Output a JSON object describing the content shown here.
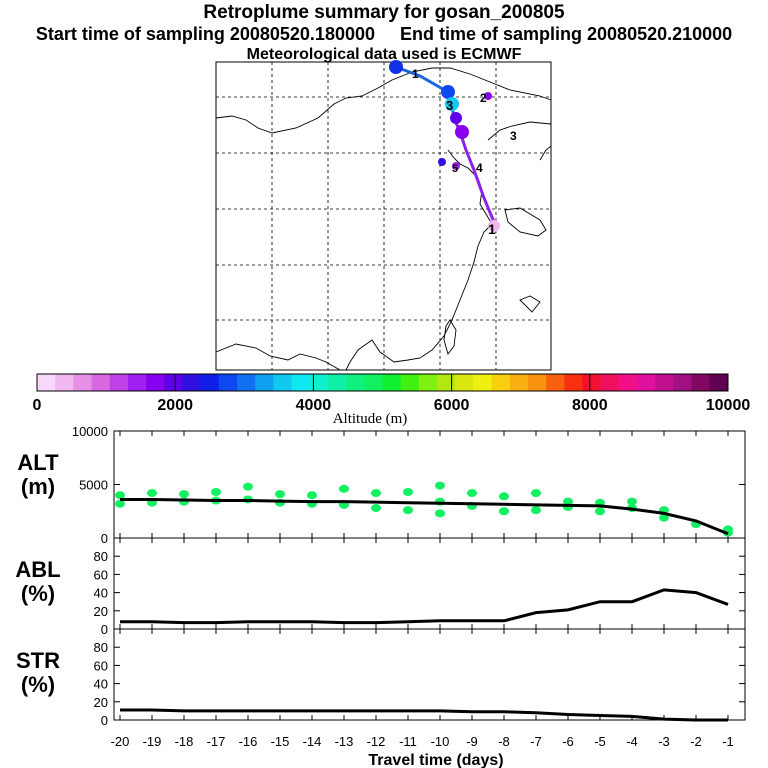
{
  "header": {
    "title": "Retroplume summary for gosan_200805",
    "start_label": "Start time of sampling 20080520.180000",
    "end_label": "End time of sampling 20080520.210000",
    "met_label": "Meteorological data used is ECMWF"
  },
  "colors": {
    "alt_points": "#10f060",
    "line": "#000000",
    "track_blue": "#1a66e0",
    "track_purple": "#9020e8"
  },
  "chart_data": [
    {
      "type": "map",
      "title": "Retroplume trajectory map",
      "track": {
        "segment1_days": [
          1,
          2,
          3,
          4
        ],
        "segment2_days": [
          4,
          3,
          2,
          1
        ],
        "blue_labels": [
          "1",
          "2",
          "3",
          "4"
        ],
        "purple_labels": [
          "1",
          "2",
          "3",
          "4",
          "5"
        ]
      },
      "colorbar": {
        "label": "Altitude (m)",
        "min": 0,
        "max": 10000,
        "ticks": [
          "0",
          "2000",
          "4000",
          "6000",
          "8000",
          "10000"
        ],
        "colors": [
          "#f8d8f8",
          "#f0b8f0",
          "#e890e8",
          "#d868e0",
          "#c040e8",
          "#a020f0",
          "#8800f0",
          "#6000e8",
          "#3010e0",
          "#1020e8",
          "#1048f0",
          "#1070f0",
          "#10a0f0",
          "#10c8f0",
          "#10e8f0",
          "#10f0d0",
          "#10f0a8",
          "#10f080",
          "#10f060",
          "#10f030",
          "#40f010",
          "#80f010",
          "#b0e810",
          "#d8e810",
          "#f0f010",
          "#f8d010",
          "#f8b010",
          "#f89010",
          "#f86010",
          "#f83010",
          "#f01030",
          "#f01060",
          "#f01088",
          "#e010a0",
          "#c01090",
          "#a01080",
          "#800860",
          "#600050"
        ]
      }
    },
    {
      "type": "scatter",
      "panel": "ALT",
      "ylabel": "ALT",
      "yunit": "(m)",
      "ylim": [
        0,
        10000
      ],
      "yticks": [
        "10000",
        "5000",
        "0"
      ],
      "series": [
        {
          "name": "mean altitude",
          "x": [
            -20,
            -19,
            -18,
            -17,
            -16,
            -15,
            -14,
            -13,
            -12,
            -11,
            -10,
            -9,
            -8,
            -7,
            -6,
            -5,
            -4,
            -3,
            -2,
            -1
          ],
          "values": [
            3600,
            3600,
            3550,
            3500,
            3500,
            3450,
            3400,
            3400,
            3350,
            3300,
            3250,
            3200,
            3150,
            3100,
            3050,
            3000,
            2700,
            2300,
            1600,
            400
          ]
        },
        {
          "name": "particle clusters",
          "x": [
            -20,
            -20,
            -19,
            -19,
            -18,
            -18,
            -17,
            -17,
            -16,
            -16,
            -15,
            -15,
            -14,
            -14,
            -13,
            -13,
            -12,
            -12,
            -11,
            -11,
            -10,
            -10,
            -10,
            -9,
            -9,
            -8,
            -8,
            -7,
            -7,
            -6,
            -6,
            -5,
            -5,
            -4,
            -4,
            -3,
            -3,
            -2,
            -1,
            -1
          ],
          "values": [
            4000,
            3200,
            4200,
            3300,
            4100,
            3400,
            4300,
            3500,
            4800,
            3600,
            4100,
            3300,
            4000,
            3200,
            4600,
            3100,
            4200,
            2800,
            4300,
            2600,
            4900,
            3400,
            2300,
            4200,
            3000,
            3900,
            2500,
            4200,
            2600,
            3400,
            2900,
            3300,
            2500,
            3400,
            2800,
            2600,
            1900,
            1300,
            800,
            500
          ]
        }
      ]
    },
    {
      "type": "line",
      "panel": "ABL",
      "ylabel": "ABL",
      "yunit": "(%)",
      "ylim": [
        0,
        100
      ],
      "yticks": [
        "80",
        "60",
        "40",
        "20",
        "0"
      ],
      "x": [
        -20,
        -19,
        -18,
        -17,
        -16,
        -15,
        -14,
        -13,
        -12,
        -11,
        -10,
        -9,
        -8,
        -7,
        -6,
        -5,
        -4,
        -3,
        -2,
        -1
      ],
      "series": [
        {
          "name": "ABL",
          "values": [
            8,
            8,
            7,
            7,
            8,
            8,
            8,
            7,
            7,
            8,
            9,
            9,
            9,
            18,
            21,
            30,
            30,
            43,
            40,
            27
          ]
        }
      ]
    },
    {
      "type": "line",
      "panel": "STR",
      "ylabel": "STR",
      "yunit": "(%)",
      "ylim": [
        0,
        100
      ],
      "yticks": [
        "80",
        "60",
        "40",
        "20",
        "0"
      ],
      "xlabel": "Travel time (days)",
      "xticks": [
        "-20",
        "-19",
        "-18",
        "-17",
        "-16",
        "-15",
        "-14",
        "-13",
        "-12",
        "-11",
        "-10",
        "-9",
        "-8",
        "-7",
        "-6",
        "-5",
        "-4",
        "-3",
        "-2",
        "-1"
      ],
      "x": [
        -20,
        -19,
        -18,
        -17,
        -16,
        -15,
        -14,
        -13,
        -12,
        -11,
        -10,
        -9,
        -8,
        -7,
        -6,
        -5,
        -4,
        -3,
        -2,
        -1
      ],
      "series": [
        {
          "name": "STR",
          "values": [
            11,
            11,
            10,
            10,
            10,
            10,
            10,
            10,
            10,
            10,
            10,
            9,
            9,
            8,
            6,
            5,
            4,
            1,
            0,
            0
          ]
        }
      ]
    }
  ]
}
